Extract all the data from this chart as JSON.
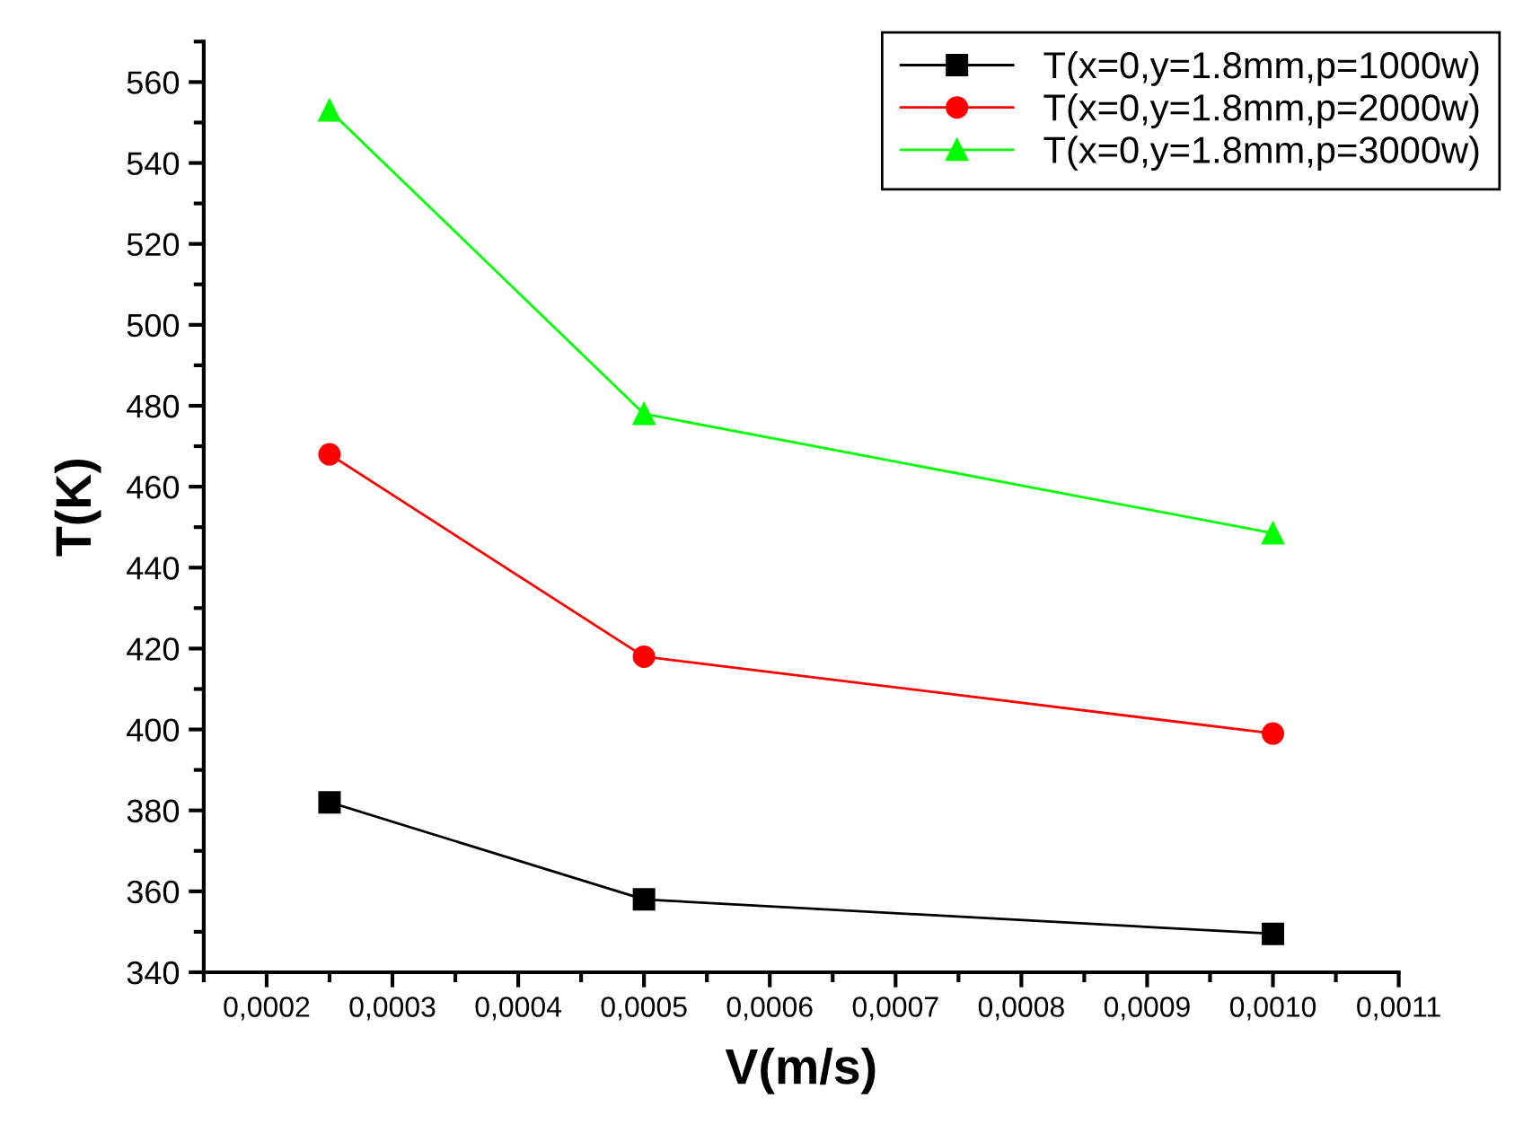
{
  "chart_data": {
    "type": "line",
    "xlabel": "V(m/s)",
    "ylabel": "T(K)",
    "x": [
      0.00025,
      0.0005,
      0.001
    ],
    "series": [
      {
        "name": "T(x=0,y=1.8mm,p=1000w)",
        "color": "#000000",
        "marker": "square",
        "values": [
          382,
          358,
          349.5
        ]
      },
      {
        "name": "T(x=0,y=1.8mm,p=2000w)",
        "color": "#ff0000",
        "marker": "circle",
        "values": [
          468,
          418,
          399
        ]
      },
      {
        "name": "T(x=0,y=1.8mm,p=3000w)",
        "color": "#00ff00",
        "marker": "triangle",
        "values": [
          553,
          478,
          448.5
        ]
      }
    ],
    "xlim": [
      0.00015,
      0.0011
    ],
    "xticks": [
      {
        "value": 0.0002,
        "label": "0,0002"
      },
      {
        "value": 0.0003,
        "label": "0,0003"
      },
      {
        "value": 0.0004,
        "label": "0,0004"
      },
      {
        "value": 0.0005,
        "label": "0,0005"
      },
      {
        "value": 0.0006,
        "label": "0,0006"
      },
      {
        "value": 0.0007,
        "label": "0,0007"
      },
      {
        "value": 0.0008,
        "label": "0,0008"
      },
      {
        "value": 0.0009,
        "label": "0,0009"
      },
      {
        "value": 0.001,
        "label": "0,0010"
      },
      {
        "value": 0.0011,
        "label": "0,0011"
      }
    ],
    "ylim": [
      340,
      570
    ],
    "yticks": [
      340,
      360,
      380,
      400,
      420,
      440,
      460,
      480,
      500,
      520,
      540,
      560
    ],
    "grid": false,
    "legend": "top right",
    "line_style": "solid"
  }
}
